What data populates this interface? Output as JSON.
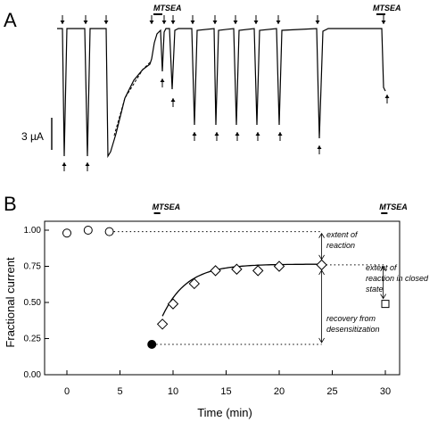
{
  "panels": {
    "a_label": "A",
    "b_label": "B"
  },
  "panel_a": {
    "scale_bar_label": "3 µA",
    "drug_labels": [
      "MTSEA",
      "MTSEA"
    ]
  },
  "chart_data": {
    "type": "scatter",
    "xlabel": "Time (min)",
    "ylabel": "Fractional current",
    "xlim": [
      -1,
      31
    ],
    "ylim": [
      0,
      1.0
    ],
    "xticks": [
      0,
      5,
      10,
      15,
      20,
      25,
      30
    ],
    "yticks": [
      0.0,
      0.25,
      0.5,
      0.75,
      1.0
    ],
    "ytick_labels": [
      "0.00",
      "0.25",
      "0.50",
      "0.75",
      "1.00"
    ],
    "grid": false,
    "drug_applications": [
      {
        "label": "MTSEA",
        "x_start": 8.2,
        "x_end": 8.8
      },
      {
        "label": "MTSEA",
        "x_start": 29.6,
        "x_end": 30.2
      }
    ],
    "series": [
      {
        "marker": "open-circle",
        "x": [
          0,
          2,
          4
        ],
        "y": [
          0.98,
          1.0,
          0.99
        ]
      },
      {
        "marker": "filled-circle",
        "x": [
          8
        ],
        "y": [
          0.21
        ]
      },
      {
        "marker": "open-diamond",
        "x": [
          9,
          10,
          12,
          14,
          16,
          18,
          20,
          24
        ],
        "y": [
          0.35,
          0.49,
          0.63,
          0.72,
          0.73,
          0.72,
          0.75,
          0.76
        ]
      },
      {
        "marker": "open-square",
        "x": [
          30
        ],
        "y": [
          0.49
        ]
      }
    ],
    "fit_curve": {
      "x0": 8.0,
      "y0": 0.21,
      "plateau": 0.765,
      "tau": 2.3
    },
    "reference_lines": [
      {
        "from": [
          4,
          0.99
        ],
        "to": [
          24,
          0.99
        ]
      },
      {
        "from": [
          24,
          0.76
        ],
        "to": [
          30,
          0.76
        ]
      },
      {
        "from": [
          8,
          0.21
        ],
        "to": [
          24,
          0.21
        ]
      }
    ],
    "annotations": [
      "extent of reaction",
      "extent of reaction in closed state",
      "recovery from desensitization"
    ]
  }
}
